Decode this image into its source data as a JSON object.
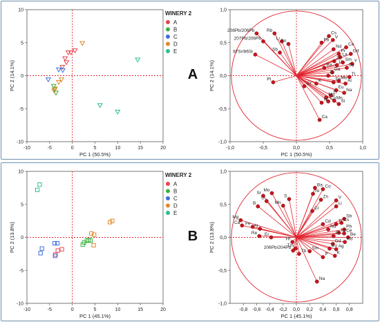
{
  "panels": [
    {
      "id": "A",
      "letter": "A",
      "legend_title": "WINERY 2",
      "legend_entries": [
        {
          "label": "A",
          "color": "#e8464f"
        },
        {
          "label": "B",
          "color": "#3cb043"
        },
        {
          "label": "C",
          "color": "#3d6fd9"
        },
        {
          "label": "D",
          "color": "#e08a2a"
        },
        {
          "label": "E",
          "color": "#2bbf8f"
        }
      ],
      "chart_data": [
        {
          "type": "scatter",
          "marker": "triangle-down",
          "xlabel": "PC 1  (50.5%)",
          "ylabel": "PC 2  (14.1%)",
          "xlim": [
            -10,
            20
          ],
          "ylim": [
            -10,
            10
          ],
          "xticks": [
            -10,
            -5,
            0,
            5,
            10,
            15,
            20
          ],
          "yticks": [
            -10,
            -5,
            0,
            5,
            10
          ],
          "series": [
            {
              "name": "A",
              "points": [
                [
                  -2.2,
                  1.3
                ],
                [
                  -1.3,
                  2.0
                ],
                [
                  -1.6,
                  2.6
                ],
                [
                  -0.9,
                  3.5
                ],
                [
                  -0.3,
                  3.5
                ],
                [
                  0.6,
                  3.8
                ]
              ]
            },
            {
              "name": "B",
              "points": [
                [
                  -4.1,
                  -1.6
                ],
                [
                  -3.9,
                  -2.1
                ],
                [
                  -3.6,
                  -2.6
                ]
              ]
            },
            {
              "name": "C",
              "points": [
                [
                  -5.3,
                  -0.6
                ],
                [
                  -3.0,
                  0.9
                ],
                [
                  -2.1,
                  0.8
                ]
              ]
            },
            {
              "name": "D",
              "points": [
                [
                  -2.4,
                  -0.6
                ],
                [
                  -3.0,
                  -1.0
                ],
                [
                  -3.8,
                  -2.0
                ],
                [
                  -4.0,
                  -2.3
                ],
                [
                  2.2,
                  4.9
                ]
              ]
            },
            {
              "name": "E",
              "points": [
                [
                  14.4,
                  2.4
                ],
                [
                  6.1,
                  -4.5
                ],
                [
                  10.0,
                  -5.5
                ]
              ]
            }
          ]
        },
        {
          "type": "scatter",
          "subtype": "loading-plot",
          "xlabel": "PC 1  (50.5%)",
          "ylabel": "PC 2  (14.1%)",
          "xlim": [
            -1.0,
            1.0
          ],
          "ylim": [
            -1.0,
            1.0
          ],
          "xticks": [
            -1.0,
            -0.5,
            0.0,
            0.5,
            1.0
          ],
          "yticks": [
            -1.0,
            -0.5,
            0.0,
            0.5,
            1.0
          ],
          "xtick_labels": [
            "-1,0",
            "-0,5",
            "0,0",
            "0,5",
            "1,0"
          ],
          "ytick_labels": [
            "-1,0",
            "-0,5",
            "0,0",
            "0,5",
            "1,0"
          ],
          "variables": [
            {
              "label": "208Pb/206Pb",
              "x": -0.6,
              "y": 0.64
            },
            {
              "label": "207Pb/206Pb",
              "x": -0.5,
              "y": 0.52
            },
            {
              "label": "Rb",
              "x": -0.33,
              "y": 0.64
            },
            {
              "label": "Li",
              "x": -0.22,
              "y": 0.52
            },
            {
              "label": "Sn",
              "x": -0.12,
              "y": 0.48
            },
            {
              "label": "Sb",
              "x": -0.25,
              "y": 0.35
            },
            {
              "label": "87Sr/86Sr",
              "x": -0.62,
              "y": 0.32
            },
            {
              "label": "Pt",
              "x": -0.35,
              "y": -0.1
            },
            {
              "label": "Cs",
              "x": 0.49,
              "y": 0.6
            },
            {
              "label": "Pb",
              "x": 0.38,
              "y": 0.5
            },
            {
              "label": "V",
              "x": 0.55,
              "y": 0.54
            },
            {
              "label": "Nd",
              "x": 0.56,
              "y": 0.4
            },
            {
              "label": "Ce",
              "x": 0.75,
              "y": 0.43
            },
            {
              "label": "Gd",
              "x": 0.82,
              "y": 0.33
            },
            {
              "label": "Pr",
              "x": 0.64,
              "y": 0.33
            },
            {
              "label": "Y",
              "x": 0.84,
              "y": 0.18
            },
            {
              "label": "Sm",
              "x": 0.7,
              "y": 0.2
            },
            {
              "label": "La",
              "x": 0.66,
              "y": 0.28
            },
            {
              "label": "Dy",
              "x": 0.76,
              "y": 0.12
            },
            {
              "label": "Zn",
              "x": 0.57,
              "y": 0.22
            },
            {
              "label": "U",
              "x": 0.61,
              "y": 0.16
            },
            {
              "label": "Ba",
              "x": 0.42,
              "y": 0.12
            },
            {
              "label": "Ga",
              "x": 0.54,
              "y": 0.05
            },
            {
              "label": "Er",
              "x": 0.48,
              "y": 0.0
            },
            {
              "label": "Tl",
              "x": 0.8,
              "y": -0.02
            },
            {
              "label": "Mo",
              "x": 0.64,
              "y": -0.08
            },
            {
              "label": "Al",
              "x": 0.74,
              "y": -0.12
            },
            {
              "label": "Fe",
              "x": 0.56,
              "y": -0.1
            },
            {
              "label": "K",
              "x": 0.3,
              "y": -0.12
            },
            {
              "label": "Gr",
              "x": 0.12,
              "y": -0.16
            },
            {
              "label": "Eu",
              "x": 0.6,
              "y": -0.22
            },
            {
              "label": "Na",
              "x": 0.72,
              "y": -0.26
            },
            {
              "label": "Ti",
              "x": 0.52,
              "y": -0.3
            },
            {
              "label": "Mg",
              "x": 0.45,
              "y": -0.33
            },
            {
              "label": "Mn",
              "x": 0.57,
              "y": -0.38
            },
            {
              "label": "Si",
              "x": 0.64,
              "y": -0.43
            },
            {
              "label": "Ni",
              "x": 0.38,
              "y": -0.41
            },
            {
              "label": "Co",
              "x": 0.48,
              "y": -0.39
            },
            {
              "label": "Ca",
              "x": 0.35,
              "y": -0.67
            }
          ]
        }
      ]
    },
    {
      "id": "B",
      "letter": "B",
      "legend_title": "WINERY 2",
      "legend_entries": [
        {
          "label": "A",
          "color": "#e8464f"
        },
        {
          "label": "B",
          "color": "#3cb043"
        },
        {
          "label": "C",
          "color": "#3d6fd9"
        },
        {
          "label": "D",
          "color": "#e08a2a"
        },
        {
          "label": "E",
          "color": "#2bbf8f"
        }
      ],
      "chart_data": [
        {
          "type": "scatter",
          "marker": "square",
          "xlabel": "PC 1  (45.1%)",
          "ylabel": "PC 2  (13.8%)",
          "xlim": [
            -10,
            20
          ],
          "ylim": [
            -10,
            10
          ],
          "xticks": [
            -10,
            -5,
            0,
            5,
            10,
            15,
            20
          ],
          "yticks": [
            -10,
            -5,
            0,
            5,
            10
          ],
          "series": [
            {
              "name": "A",
              "points": [
                [
                  -3.2,
                  -2.0
                ],
                [
                  -2.3,
                  -1.8
                ],
                [
                  -3.7,
                  -2.6
                ]
              ]
            },
            {
              "name": "B",
              "points": [
                [
                  2.6,
                  -0.8
                ],
                [
                  3.2,
                  -0.5
                ],
                [
                  3.6,
                  -0.4
                ],
                [
                  4.0,
                  -0.5
                ],
                [
                  2.3,
                  -1.1
                ]
              ]
            },
            {
              "name": "C",
              "points": [
                [
                  -6.7,
                  -1.7
                ],
                [
                  -7.0,
                  -2.4
                ],
                [
                  -3.9,
                  -0.9
                ],
                [
                  -3.3,
                  -0.9
                ],
                [
                  -3.8,
                  -2.8
                ]
              ]
            },
            {
              "name": "D",
              "points": [
                [
                  4.2,
                  0.6
                ],
                [
                  4.8,
                  0.4
                ],
                [
                  8.3,
                  2.3
                ],
                [
                  8.8,
                  2.5
                ],
                [
                  4.7,
                  -1.2
                ]
              ]
            },
            {
              "name": "E",
              "points": [
                [
                  -7.2,
                  8.0
                ],
                [
                  -7.7,
                  7.2
                ]
              ]
            }
          ]
        },
        {
          "type": "scatter",
          "subtype": "loading-plot",
          "xlabel": "PC 1  (45.1%)",
          "ylabel": "PC 2  (13.8%)",
          "xlim": [
            -1.0,
            1.0
          ],
          "ylim": [
            -1.0,
            1.0
          ],
          "xticks": [
            -0.8,
            -0.6,
            -0.4,
            -0.2,
            0.0,
            0.2,
            0.4,
            0.6,
            0.8
          ],
          "yticks": [
            -1.0,
            -0.5,
            0.0,
            0.5,
            1.0
          ],
          "xtick_labels": [
            "-0,8",
            "-0,6",
            "-0,4",
            "-0,2",
            "0,0",
            "0,2",
            "0,4",
            "0,6",
            "0,8"
          ],
          "ytick_labels": [
            "-1,0",
            "-0,5",
            "0,0",
            "0,5",
            "1,0"
          ],
          "variables": [
            {
              "label": "Mo",
              "x": -0.37,
              "y": 0.67
            },
            {
              "label": "Sr",
              "x": -0.5,
              "y": 0.63
            },
            {
              "label": "U",
              "x": -0.45,
              "y": 0.55
            },
            {
              "label": "S",
              "x": -0.11,
              "y": 0.58
            },
            {
              "label": "Mn",
              "x": -0.2,
              "y": 0.48
            },
            {
              "label": "B",
              "x": -0.58,
              "y": 0.47
            },
            {
              "label": "Ba",
              "x": 0.28,
              "y": 0.75
            },
            {
              "label": "Co",
              "x": 0.4,
              "y": 0.73
            },
            {
              "label": "Ni",
              "x": 0.25,
              "y": 0.66
            },
            {
              "label": "Zn",
              "x": 0.37,
              "y": 0.57
            },
            {
              "label": "V",
              "x": 0.6,
              "y": 0.56
            },
            {
              "label": "Li",
              "x": 0.6,
              "y": 0.47
            },
            {
              "label": "Cr",
              "x": 0.24,
              "y": 0.4
            },
            {
              "label": "Mg",
              "x": -0.84,
              "y": 0.26
            },
            {
              "label": "Ca",
              "x": -0.82,
              "y": 0.18
            },
            {
              "label": "Fe",
              "x": -0.66,
              "y": 0.16
            },
            {
              "label": "Al",
              "x": -0.55,
              "y": 0.13
            },
            {
              "label": "Re",
              "x": -0.56,
              "y": 0.02
            },
            {
              "label": "Er",
              "x": -0.38,
              "y": 0.0
            },
            {
              "label": "Cd",
              "x": 0.4,
              "y": 0.2
            },
            {
              "label": "Sb",
              "x": 0.72,
              "y": 0.28
            },
            {
              "label": "Cs",
              "x": 0.68,
              "y": 0.22
            },
            {
              "label": "Ti",
              "x": 0.6,
              "y": 0.2
            },
            {
              "label": "Pb",
              "x": 0.72,
              "y": 0.12
            },
            {
              "label": "Nd",
              "x": 0.48,
              "y": 0.12
            },
            {
              "label": "Ce",
              "x": 0.72,
              "y": 0.06
            },
            {
              "label": "La",
              "x": 0.64,
              "y": 0.07
            },
            {
              "label": "Be",
              "x": 0.78,
              "y": 0.0
            },
            {
              "label": "Pr",
              "x": 0.56,
              "y": 0.02
            },
            {
              "label": "Rb",
              "x": 0.73,
              "y": -0.07
            },
            {
              "label": "Gd",
              "x": 0.55,
              "y": -0.1
            },
            {
              "label": "Eu",
              "x": 0.5,
              "y": -0.17
            },
            {
              "label": "Ag",
              "x": 0.6,
              "y": -0.18
            },
            {
              "label": "K",
              "x": 0.58,
              "y": -0.28
            },
            {
              "label": "P",
              "x": 0.4,
              "y": -0.3
            },
            {
              "label": "Sm",
              "x": 0.2,
              "y": -0.21
            },
            {
              "label": "Tb",
              "x": 0.04,
              "y": -0.25
            },
            {
              "label": "Tm",
              "x": -0.01,
              "y": -0.17
            },
            {
              "label": "Hf",
              "x": -0.06,
              "y": -0.07
            },
            {
              "label": "206Pb/204Pb",
              "x": -0.05,
              "y": -0.2
            },
            {
              "label": "Na",
              "x": 0.31,
              "y": -0.67
            }
          ]
        }
      ]
    }
  ]
}
